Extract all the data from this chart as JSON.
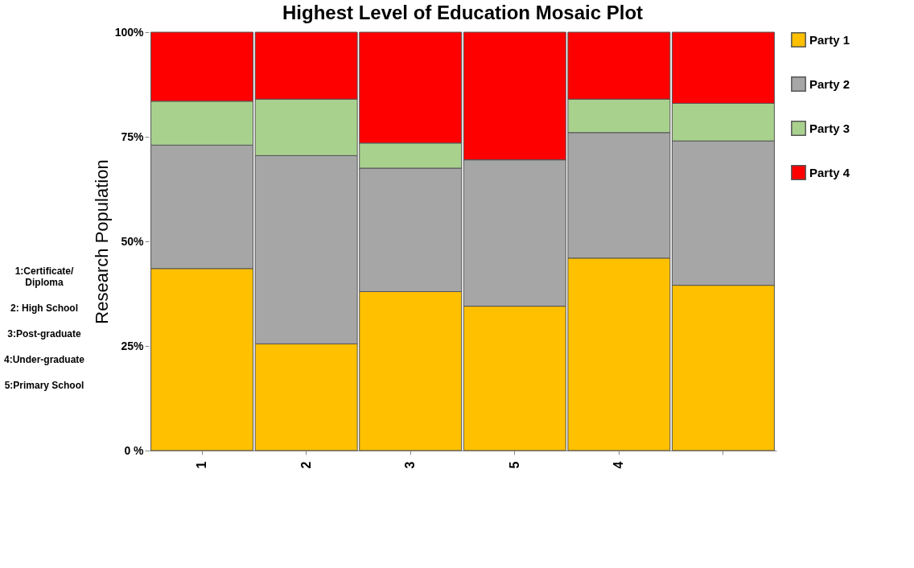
{
  "chart_data": {
    "type": "bar",
    "title": "Highest Level of Education Mosaic Plot",
    "ylabel": "Research Population",
    "categories": [
      "1",
      "2",
      "3",
      "5",
      "4",
      null
    ],
    "stacked": true,
    "series": [
      {
        "name": "Party 1",
        "color": "#ffc000",
        "values": [
          43.5,
          25.5,
          38,
          34.5,
          46,
          39.5
        ]
      },
      {
        "name": "Party 2",
        "color": "#a6a6a6",
        "values": [
          29.5,
          45,
          29.5,
          35,
          30,
          34.5
        ]
      },
      {
        "name": "Party 3",
        "color": "#a9d18e",
        "values": [
          10.5,
          13.5,
          6,
          0,
          8,
          9
        ]
      },
      {
        "name": "Party 4",
        "color": "#ff0000",
        "values": [
          16.5,
          16,
          26.5,
          30.5,
          16,
          17
        ]
      }
    ],
    "ylim": [
      0,
      100
    ],
    "yticks": [
      {
        "value": 0,
        "label": "0 %"
      },
      {
        "value": 25,
        "label": "25%"
      },
      {
        "value": 50,
        "label": "50%"
      },
      {
        "value": 75,
        "label": "75%"
      },
      {
        "value": 100,
        "label": "100%"
      }
    ],
    "grid": false,
    "legend": "right",
    "annotations": [
      "1:Certificate/ Diploma",
      "2: High School",
      "3:Post-graduate",
      "4:Under-graduate",
      "5:Primary School"
    ]
  }
}
